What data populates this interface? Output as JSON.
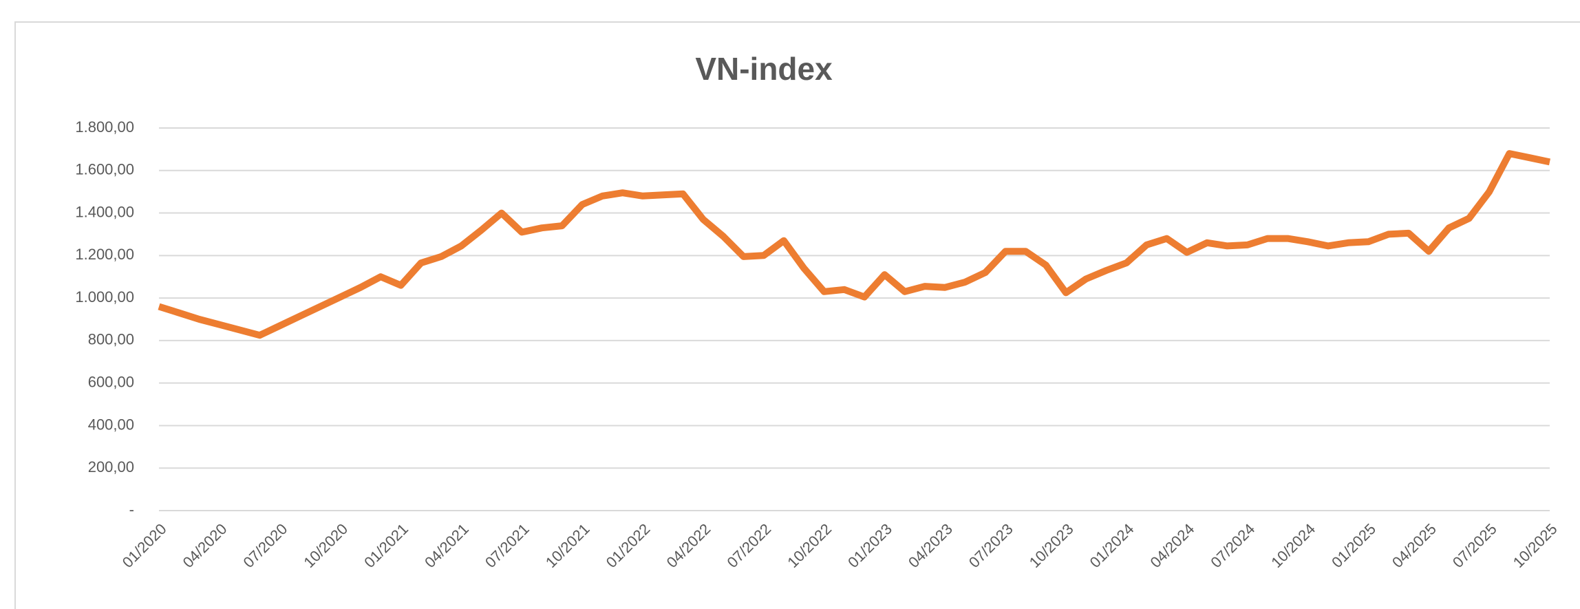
{
  "chart_data": {
    "type": "line",
    "title": "VN-index",
    "categories": [
      "01/2020",
      null,
      null,
      "04/2020",
      null,
      null,
      "07/2020",
      null,
      null,
      "10/2020",
      null,
      null,
      "01/2021",
      null,
      null,
      "04/2021",
      null,
      null,
      "07/2021",
      null,
      null,
      "10/2021",
      null,
      null,
      "01/2022",
      null,
      null,
      "04/2022",
      null,
      null,
      "07/2022",
      null,
      null,
      "10/2022",
      null,
      null,
      "01/2023",
      null,
      null,
      "04/2023",
      null,
      null,
      "07/2023",
      null,
      null,
      "10/2023",
      null,
      null,
      "01/2024",
      null,
      null,
      "04/2024",
      null,
      null,
      "07/2024",
      null,
      null,
      "10/2024",
      null,
      null,
      "01/2025",
      null,
      null,
      "04/2025",
      null,
      null,
      "07/2025",
      null,
      null,
      "10/2025"
    ],
    "series": [
      {
        "name": "VN-index",
        "color": "#ed7d31",
        "values": [
          960,
          930,
          900,
          875,
          850,
          825,
          870,
          915,
          960,
          1005,
          1050,
          1100,
          1060,
          1165,
          1195,
          1245,
          1320,
          1400,
          1310,
          1330,
          1340,
          1440,
          1480,
          1495,
          1480,
          1485,
          1490,
          1370,
          1290,
          1195,
          1200,
          1270,
          1140,
          1030,
          1040,
          1005,
          1110,
          1030,
          1055,
          1050,
          1075,
          1120,
          1220,
          1220,
          1155,
          1025,
          1090,
          1130,
          1165,
          1250,
          1280,
          1215,
          1260,
          1245,
          1250,
          1280,
          1280,
          1265,
          1245,
          1260,
          1265,
          1300,
          1305,
          1220,
          1330,
          1375,
          1500,
          1680,
          1660,
          1640
        ]
      }
    ],
    "ylim": [
      0,
      1800
    ],
    "yticks": [
      {
        "value": 0,
        "label": "-"
      },
      {
        "value": 200,
        "label": "200,00"
      },
      {
        "value": 400,
        "label": "400,00"
      },
      {
        "value": 600,
        "label": "600,00"
      },
      {
        "value": 800,
        "label": "800,00"
      },
      {
        "value": 1000,
        "label": "1.000,00"
      },
      {
        "value": 1200,
        "label": "1.200,00"
      },
      {
        "value": 1400,
        "label": "1.400,00"
      },
      {
        "value": 1600,
        "label": "1.600,00"
      },
      {
        "value": 1800,
        "label": "1.800,00"
      }
    ],
    "grid": true
  }
}
